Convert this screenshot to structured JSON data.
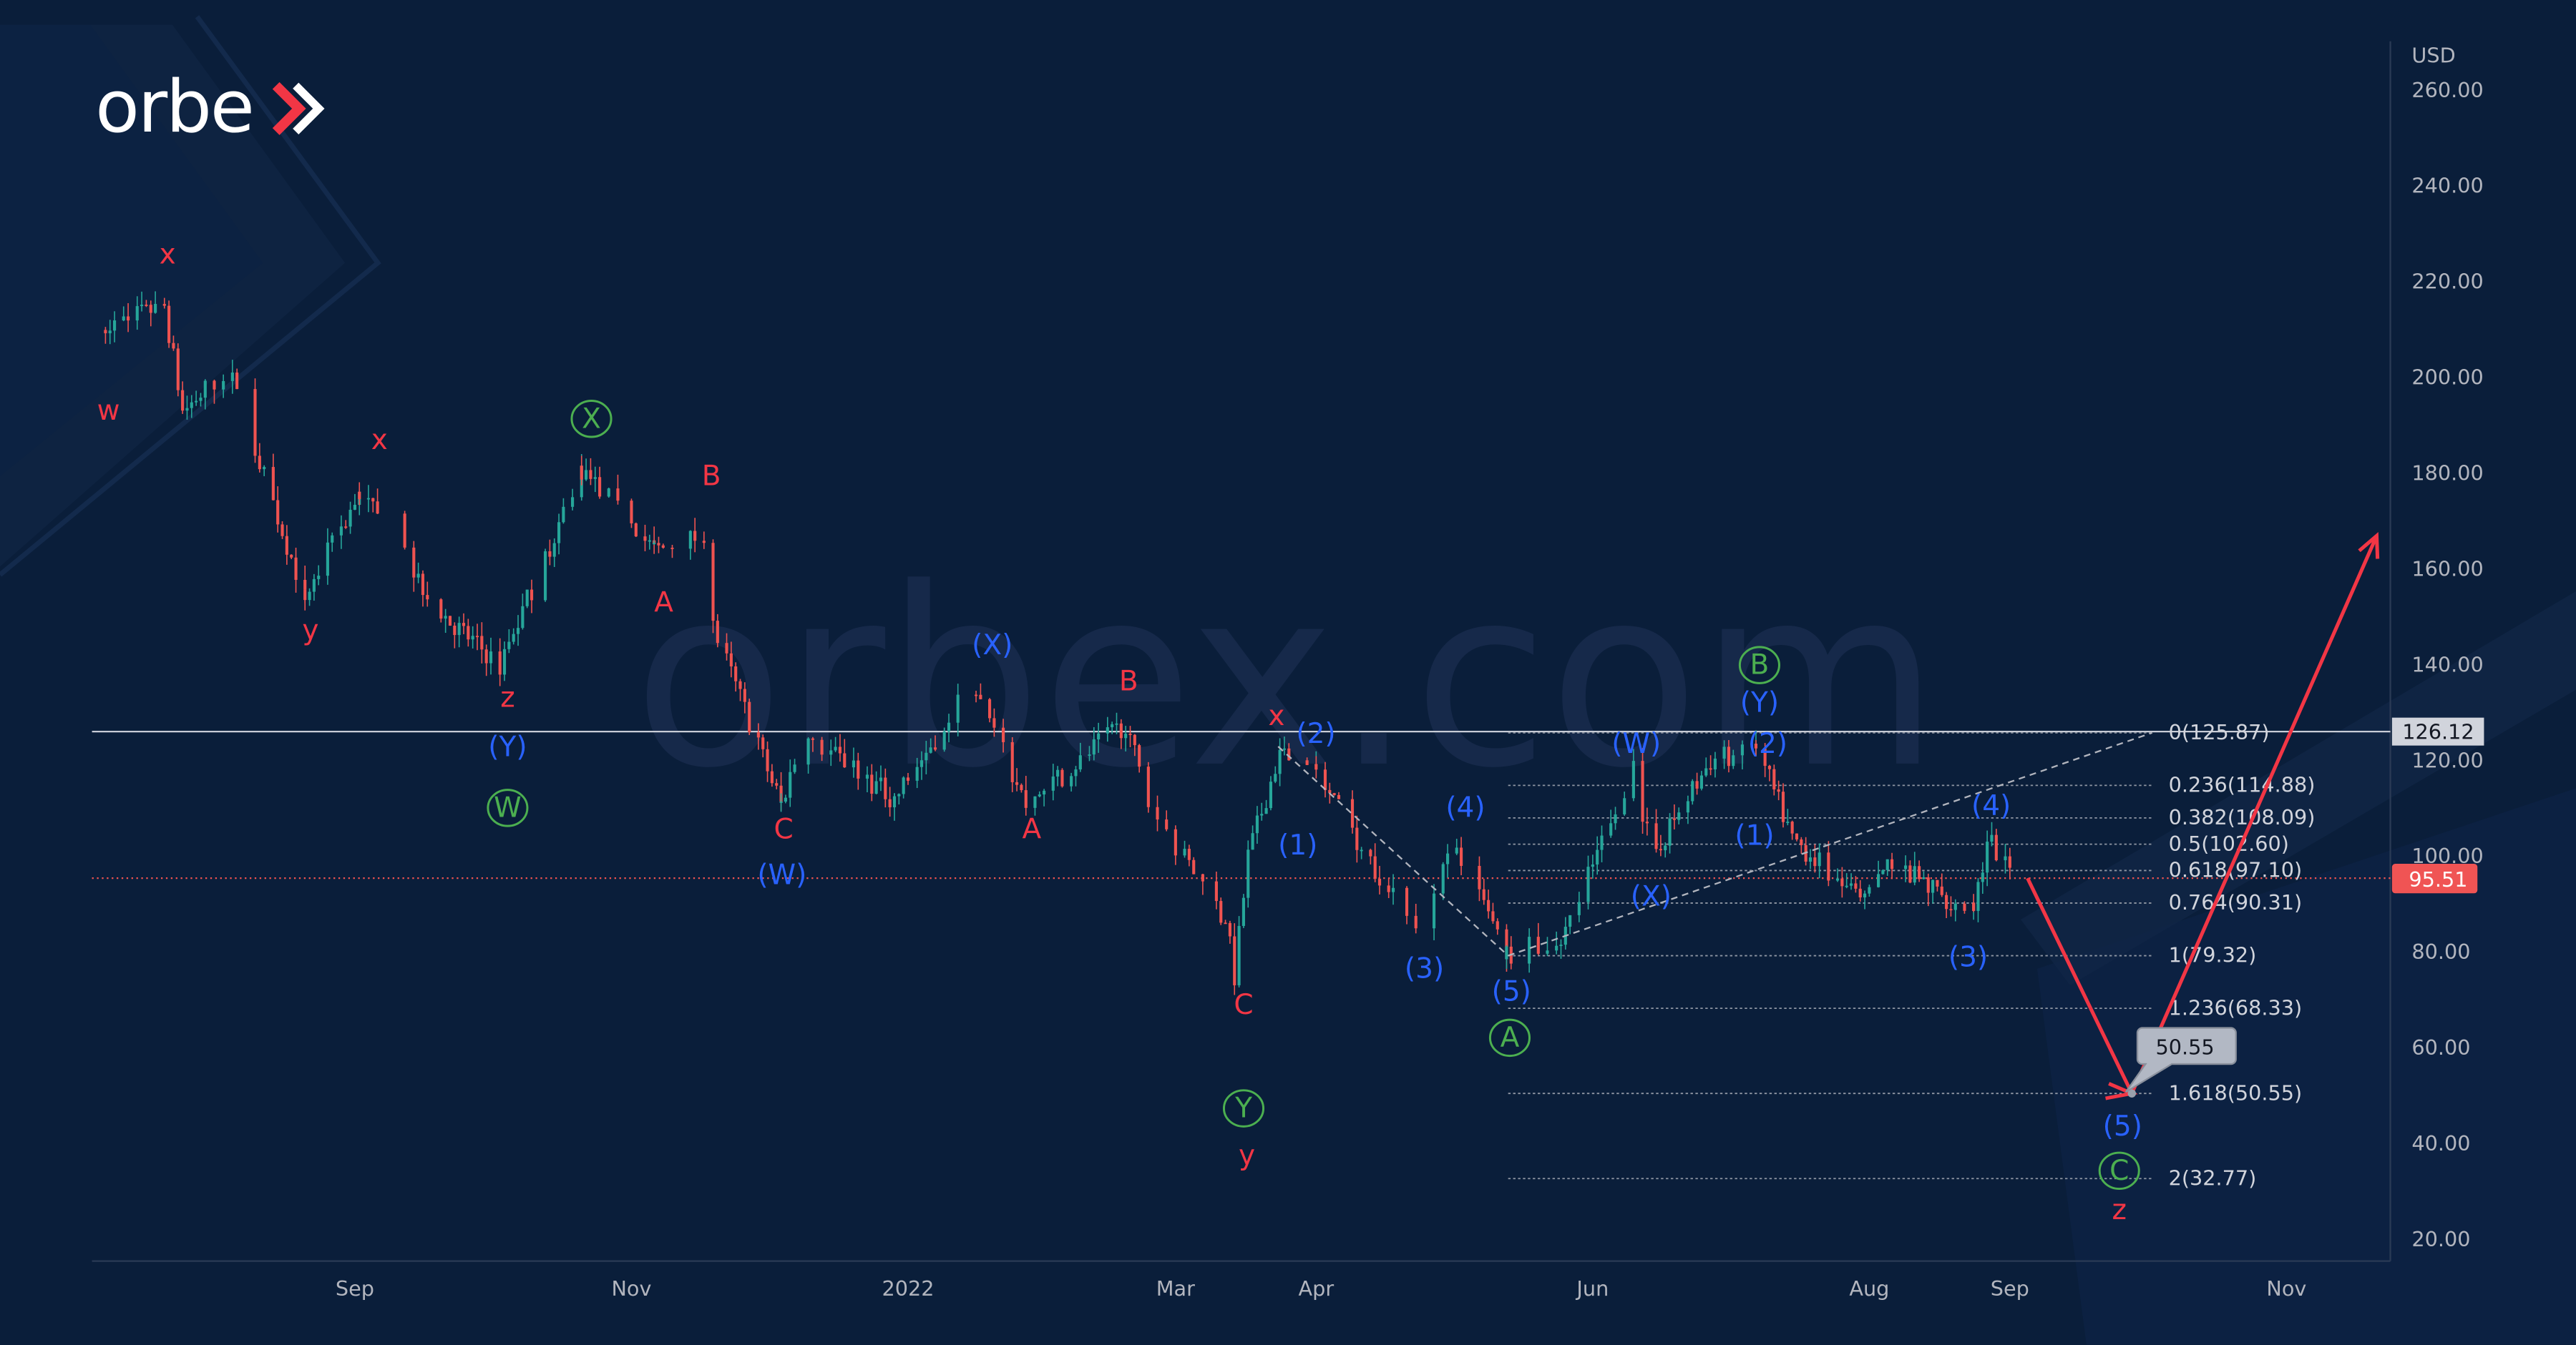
{
  "brand": {
    "logo_text": "orbex",
    "watermark": "orbex.com"
  },
  "colors": {
    "background": "#0a1e3a",
    "up": "#26a69a",
    "down": "#ef5350",
    "wave_red": "#f23645",
    "wave_blue": "#2962ff",
    "wave_green": "#4caf50",
    "projection": "#f23645"
  },
  "chart_data": {
    "type": "candlestick",
    "currency_label": "USD",
    "y_ticks": [
      "260.00",
      "240.00",
      "220.00",
      "200.00",
      "180.00",
      "160.00",
      "140.00",
      "120.00",
      "100.00",
      "80.00",
      "60.00",
      "40.00",
      "20.00"
    ],
    "ylim": [
      20,
      260
    ],
    "x_ticks": [
      {
        "label": "Sep",
        "date": "2021-09-01"
      },
      {
        "label": "Nov",
        "date": "2021-11-01"
      },
      {
        "label": "2022",
        "date": "2022-01-01"
      },
      {
        "label": "Mar",
        "date": "2022-03-01"
      },
      {
        "label": "Apr",
        "date": "2022-04-01"
      },
      {
        "label": "Jun",
        "date": "2022-06-01"
      },
      {
        "label": "Aug",
        "date": "2022-08-01"
      },
      {
        "label": "Sep",
        "date": "2022-09-01"
      },
      {
        "label": "Nov",
        "date": "2022-11-01"
      }
    ],
    "price_path_approx": [
      [
        "2021-07-07",
        210
      ],
      [
        "2021-07-21",
        215
      ],
      [
        "2021-07-25",
        193
      ],
      [
        "2021-08-04",
        202
      ],
      [
        "2021-08-21",
        154
      ],
      [
        "2021-09-02",
        176
      ],
      [
        "2021-09-21",
        150
      ],
      [
        "2021-10-03",
        140
      ],
      [
        "2021-10-21",
        181
      ],
      [
        "2021-11-06",
        164
      ],
      [
        "2021-11-17",
        167
      ],
      [
        "2021-11-19",
        148
      ],
      [
        "2021-12-04",
        111
      ],
      [
        "2021-12-09",
        126
      ],
      [
        "2021-12-29",
        112
      ],
      [
        "2022-01-15",
        136
      ],
      [
        "2022-01-27",
        111
      ],
      [
        "2022-02-18",
        128
      ],
      [
        "2022-02-23",
        111
      ],
      [
        "2022-03-12",
        87
      ],
      [
        "2022-03-14",
        75
      ],
      [
        "2022-03-17",
        100
      ],
      [
        "2022-03-24",
        122
      ],
      [
        "2022-04-01",
        117
      ],
      [
        "2022-04-24",
        83
      ],
      [
        "2022-05-01",
        102
      ],
      [
        "2022-05-13",
        80
      ],
      [
        "2022-05-25",
        82
      ],
      [
        "2022-06-10",
        119
      ],
      [
        "2022-06-14",
        100
      ],
      [
        "2022-06-27",
        120
      ],
      [
        "2022-07-07",
        123
      ],
      [
        "2022-07-15",
        104
      ],
      [
        "2022-07-31",
        90
      ],
      [
        "2022-08-05",
        99
      ],
      [
        "2022-08-24",
        88
      ],
      [
        "2022-08-27",
        104
      ],
      [
        "2022-09-02",
        95.51
      ]
    ],
    "last_price": "95.51",
    "horizontal_level": "126.12",
    "projection_path": [
      [
        "2022-09-02",
        95.51
      ],
      [
        "2022-09-25",
        50.55
      ],
      [
        "2022-11-18",
        167
      ]
    ],
    "projection_target_label": "50.55",
    "fib_levels": [
      {
        "label": "0(125.87)",
        "price": 125.87
      },
      {
        "label": "0.236(114.88)",
        "price": 114.88
      },
      {
        "label": "0.382(108.09)",
        "price": 108.09
      },
      {
        "label": "0.5(102.60)",
        "price": 102.6
      },
      {
        "label": "0.618(97.10)",
        "price": 97.1
      },
      {
        "label": "0.764(90.31)",
        "price": 90.31
      },
      {
        "label": "1(79.32)",
        "price": 79.32
      },
      {
        "label": "1.236(68.33)",
        "price": 68.33
      },
      {
        "label": "1.618(50.55)",
        "price": 50.55
      },
      {
        "label": "2(32.77)",
        "price": 32.77
      }
    ],
    "wave_labels": [
      {
        "text": "w",
        "color": "red"
      },
      {
        "text": "x",
        "color": "red"
      },
      {
        "text": "y",
        "color": "red"
      },
      {
        "text": "x",
        "color": "red"
      },
      {
        "text": "z",
        "color": "red"
      },
      {
        "text": "B",
        "color": "red"
      },
      {
        "text": "A",
        "color": "red"
      },
      {
        "text": "C",
        "color": "red"
      },
      {
        "text": "A",
        "color": "red"
      },
      {
        "text": "B",
        "color": "red"
      },
      {
        "text": "x",
        "color": "red"
      },
      {
        "text": "C",
        "color": "red"
      },
      {
        "text": "y",
        "color": "red"
      },
      {
        "text": "z",
        "color": "red"
      },
      {
        "text": "(Y)",
        "color": "blue"
      },
      {
        "text": "(W)",
        "color": "blue"
      },
      {
        "text": "(X)",
        "color": "blue"
      },
      {
        "text": "(2)",
        "color": "blue"
      },
      {
        "text": "(1)",
        "color": "blue"
      },
      {
        "text": "(4)",
        "color": "blue"
      },
      {
        "text": "(3)",
        "color": "blue"
      },
      {
        "text": "(5)",
        "color": "blue"
      },
      {
        "text": "(W)",
        "color": "blue"
      },
      {
        "text": "(X)",
        "color": "blue"
      },
      {
        "text": "(Y)",
        "color": "blue"
      },
      {
        "text": "(2)",
        "color": "blue"
      },
      {
        "text": "(1)",
        "color": "blue"
      },
      {
        "text": "(4)",
        "color": "blue"
      },
      {
        "text": "(3)",
        "color": "blue"
      },
      {
        "text": "(5)",
        "color": "blue"
      },
      {
        "text": "W",
        "color": "green",
        "circled": true
      },
      {
        "text": "X",
        "color": "green",
        "circled": true
      },
      {
        "text": "Y",
        "color": "green",
        "circled": true
      },
      {
        "text": "A",
        "color": "green",
        "circled": true
      },
      {
        "text": "B",
        "color": "green",
        "circled": true
      },
      {
        "text": "C",
        "color": "green",
        "circled": true
      }
    ]
  }
}
